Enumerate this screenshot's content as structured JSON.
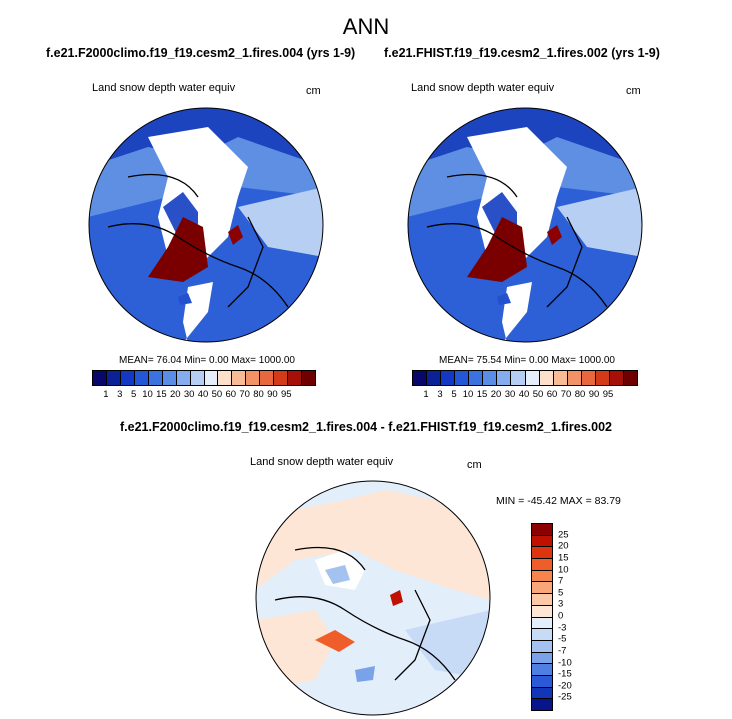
{
  "title": "ANN",
  "panels": [
    {
      "case": "f.e21.F2000climo.f19_f19.cesm2_1.fires.004 (yrs 1-9)",
      "variable": "Land snow depth water equiv",
      "units": "cm",
      "stats": "MEAN= 76.04  Min=   0.00  Max= 1000.00"
    },
    {
      "case": "f.e21.FHIST.f19_f19.cesm2_1.fires.002 (yrs 1-9)",
      "variable": "Land snow depth water equiv",
      "units": "cm",
      "stats": "MEAN= 75.54  Min=   0.00  Max= 1000.00"
    }
  ],
  "difference": {
    "title": "f.e21.F2000climo.f19_f19.cesm2_1.fires.004 - f.e21.FHIST.f19_f19.cesm2_1.fires.002",
    "variable": "Land snow depth water equiv",
    "units": "cm",
    "stats": "MIN = -45.42 MAX =  83.79"
  },
  "colorbar": {
    "labels": [
      "1",
      "3",
      "5",
      "10",
      "15",
      "20",
      "30",
      "40",
      "50",
      "60",
      "70",
      "80",
      "90",
      "95"
    ],
    "colors": [
      "#08086b",
      "#0a2296",
      "#1238c4",
      "#2456d8",
      "#3c72e0",
      "#5a8ee6",
      "#84acee",
      "#b6cdf4",
      "#e6eefb",
      "#fde0cc",
      "#f9bb96",
      "#f39266",
      "#e8673e",
      "#d23a1a",
      "#a51008",
      "#6e0000"
    ]
  },
  "diff_colorbar": {
    "labels": [
      "25",
      "20",
      "15",
      "10",
      "7",
      "5",
      "3",
      "0",
      "-3",
      "-5",
      "-7",
      "-10",
      "-15",
      "-20",
      "-25"
    ],
    "colors": [
      "#8b0000",
      "#c01000",
      "#dd3510",
      "#ef5e2a",
      "#f6844e",
      "#f9a67a",
      "#fbc8a8",
      "#fde6d6",
      "#e2eefb",
      "#c6dbf6",
      "#a4c2f0",
      "#7aa2e8",
      "#4f7fe0",
      "#2a5ad8",
      "#1236b8",
      "#08148a"
    ]
  }
}
